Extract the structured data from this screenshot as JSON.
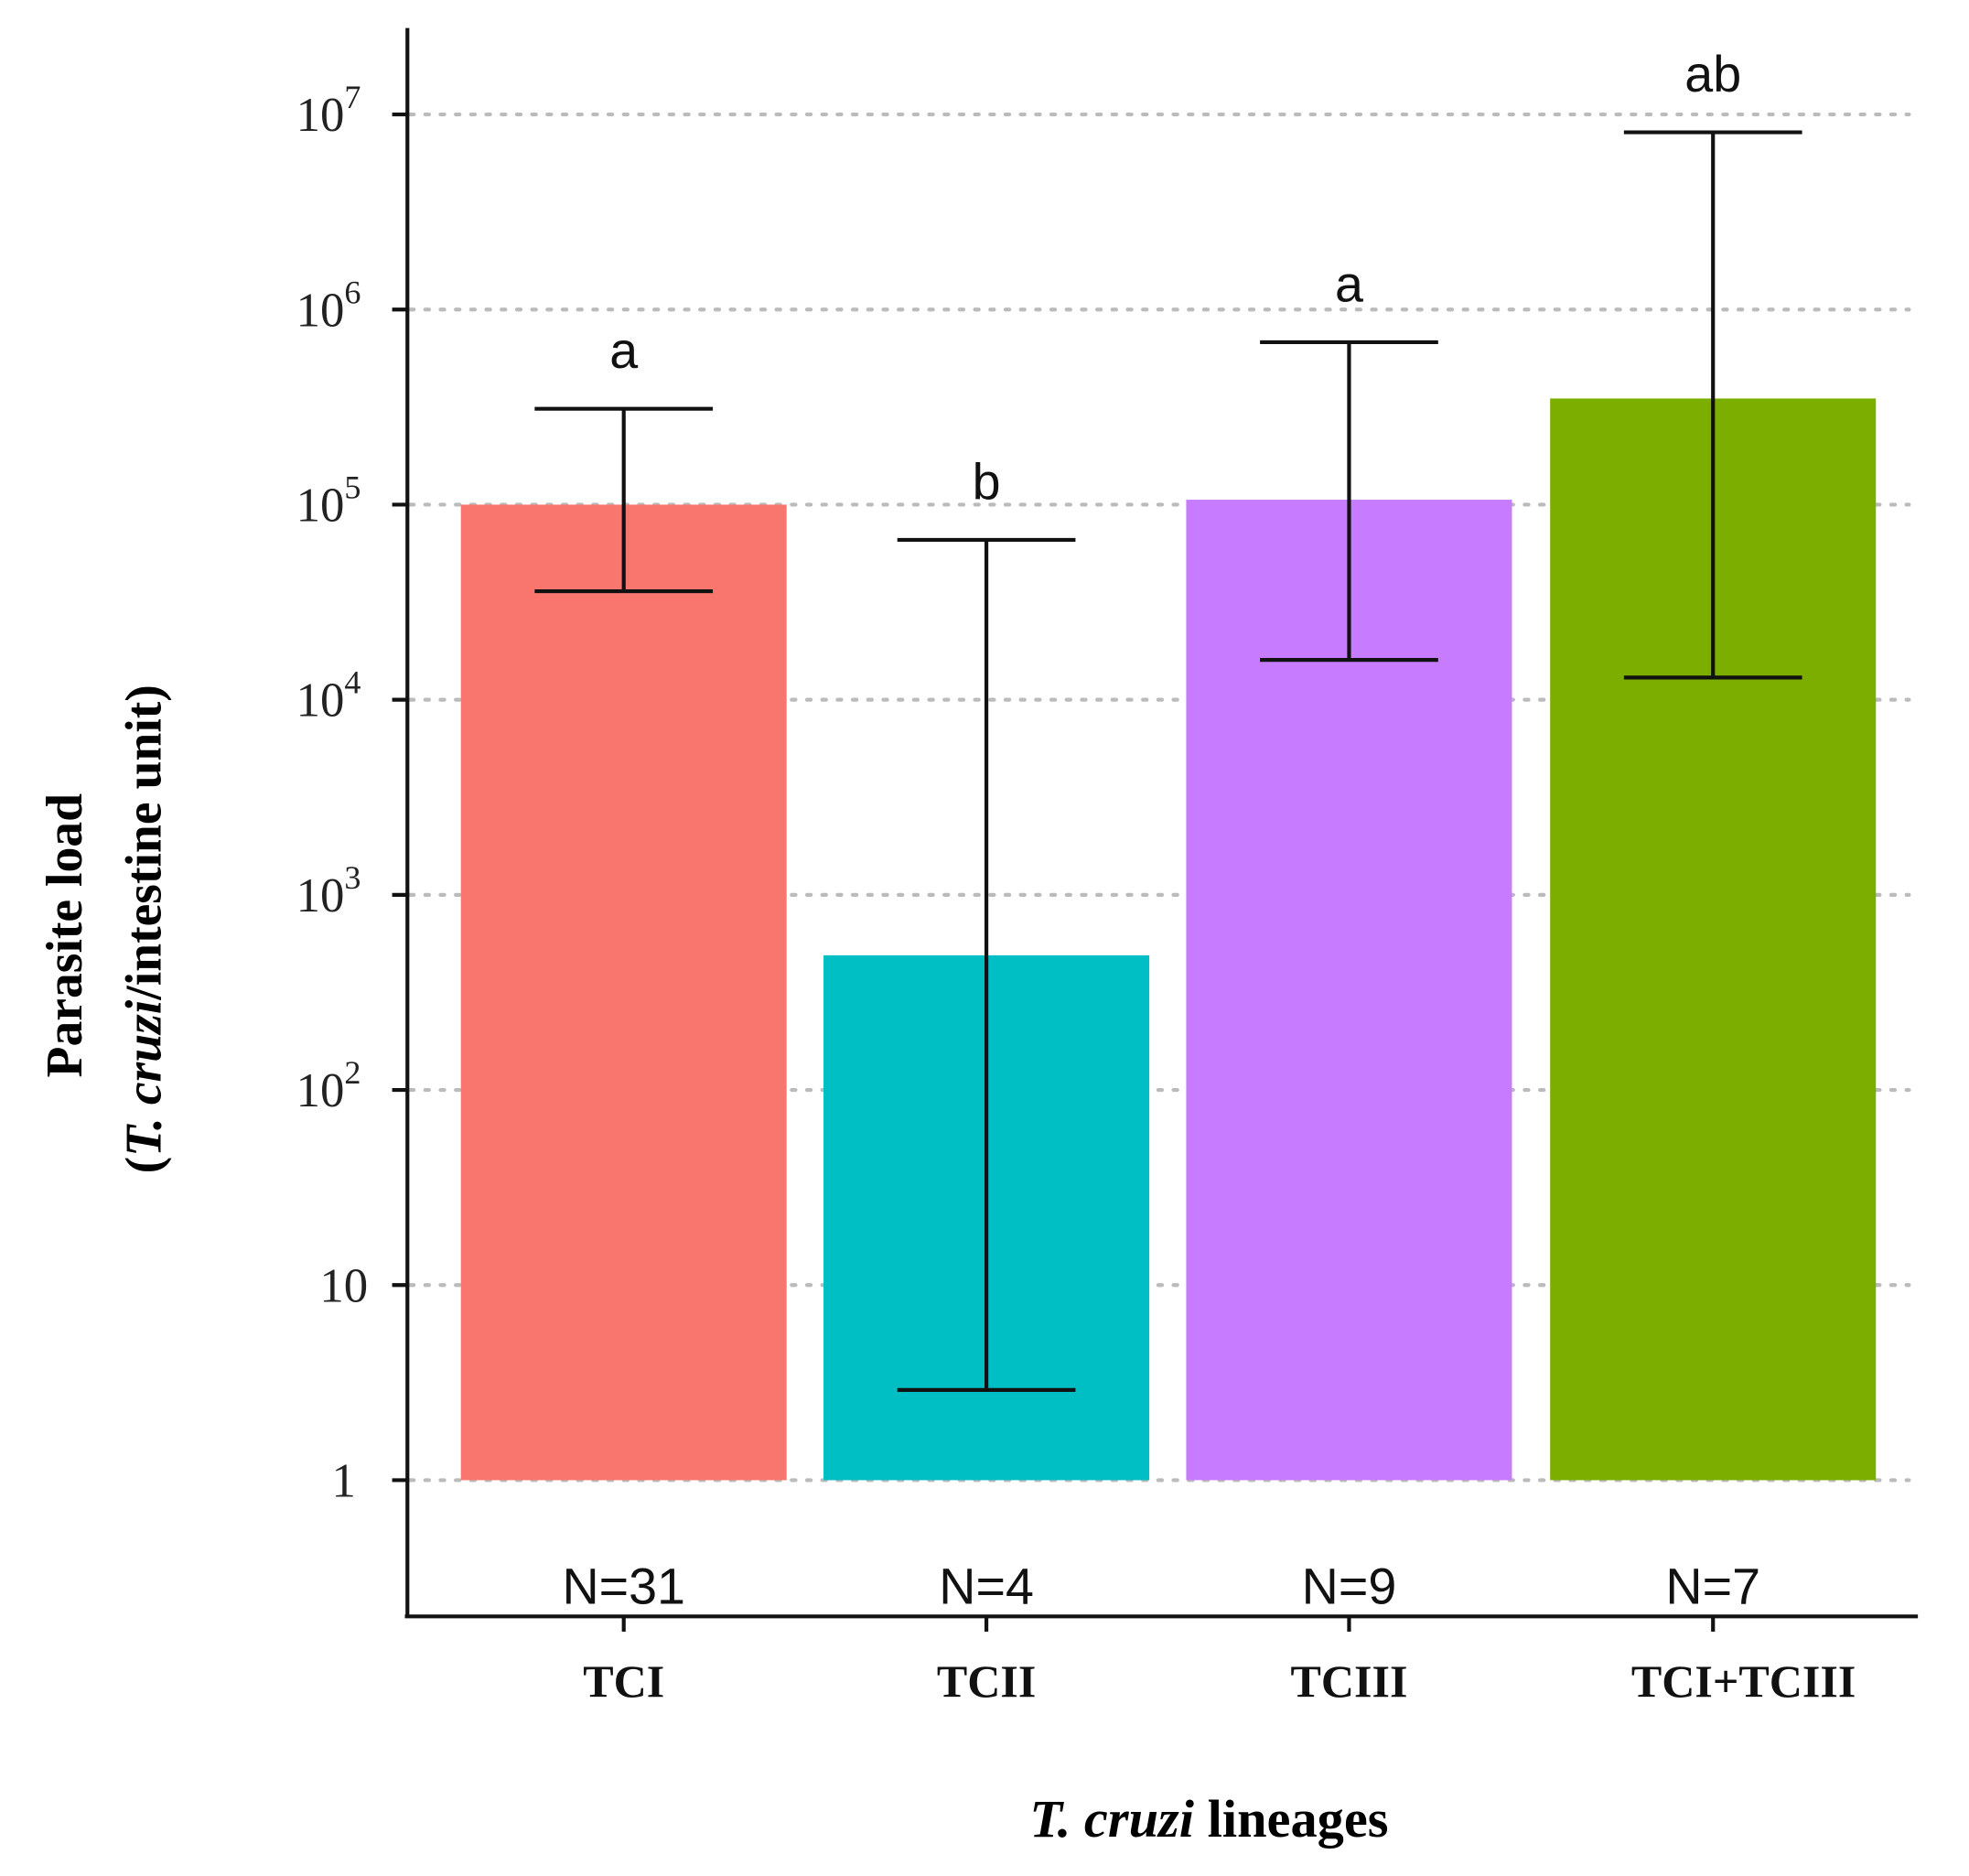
{
  "chart_data": {
    "type": "bar",
    "yscale": "log10",
    "ylim": [
      1,
      10000000
    ],
    "grid": "horizontal dotted",
    "categories": [
      "TCI",
      "TCII",
      "TCIII",
      "TCI+TCIII"
    ],
    "values": [
      100000,
      490,
      106000,
      350000
    ],
    "error_upper": [
      310000,
      66000,
      680000,
      8100000
    ],
    "error_lower": [
      36000,
      2.9,
      16000,
      13000
    ],
    "significance_letters": [
      "a",
      "b",
      "a",
      "ab"
    ],
    "n_labels": [
      "N=31",
      "N=4",
      "N=9",
      "N=7"
    ],
    "colors": [
      "#F8766D",
      "#00BFC4",
      "#C77CFF",
      "#7CAE00"
    ],
    "y_ticks": [
      {
        "value": 1,
        "base": "1",
        "exp": ""
      },
      {
        "value": 10,
        "base": "10",
        "exp": ""
      },
      {
        "value": 100,
        "base": "10",
        "exp": "2"
      },
      {
        "value": 1000,
        "base": "10",
        "exp": "3"
      },
      {
        "value": 10000,
        "base": "10",
        "exp": "4"
      },
      {
        "value": 100000,
        "base": "10",
        "exp": "5"
      },
      {
        "value": 1000000,
        "base": "10",
        "exp": "6"
      },
      {
        "value": 10000000,
        "base": "10",
        "exp": "7"
      }
    ],
    "ylabel": {
      "line1": "Parasite load",
      "line2_open": "(",
      "line2_italic": "T. cruzi",
      "line2_rest": "/intestine unit)"
    },
    "xlabel": {
      "italic": "T. cruzi",
      "rest": " lineages"
    }
  }
}
